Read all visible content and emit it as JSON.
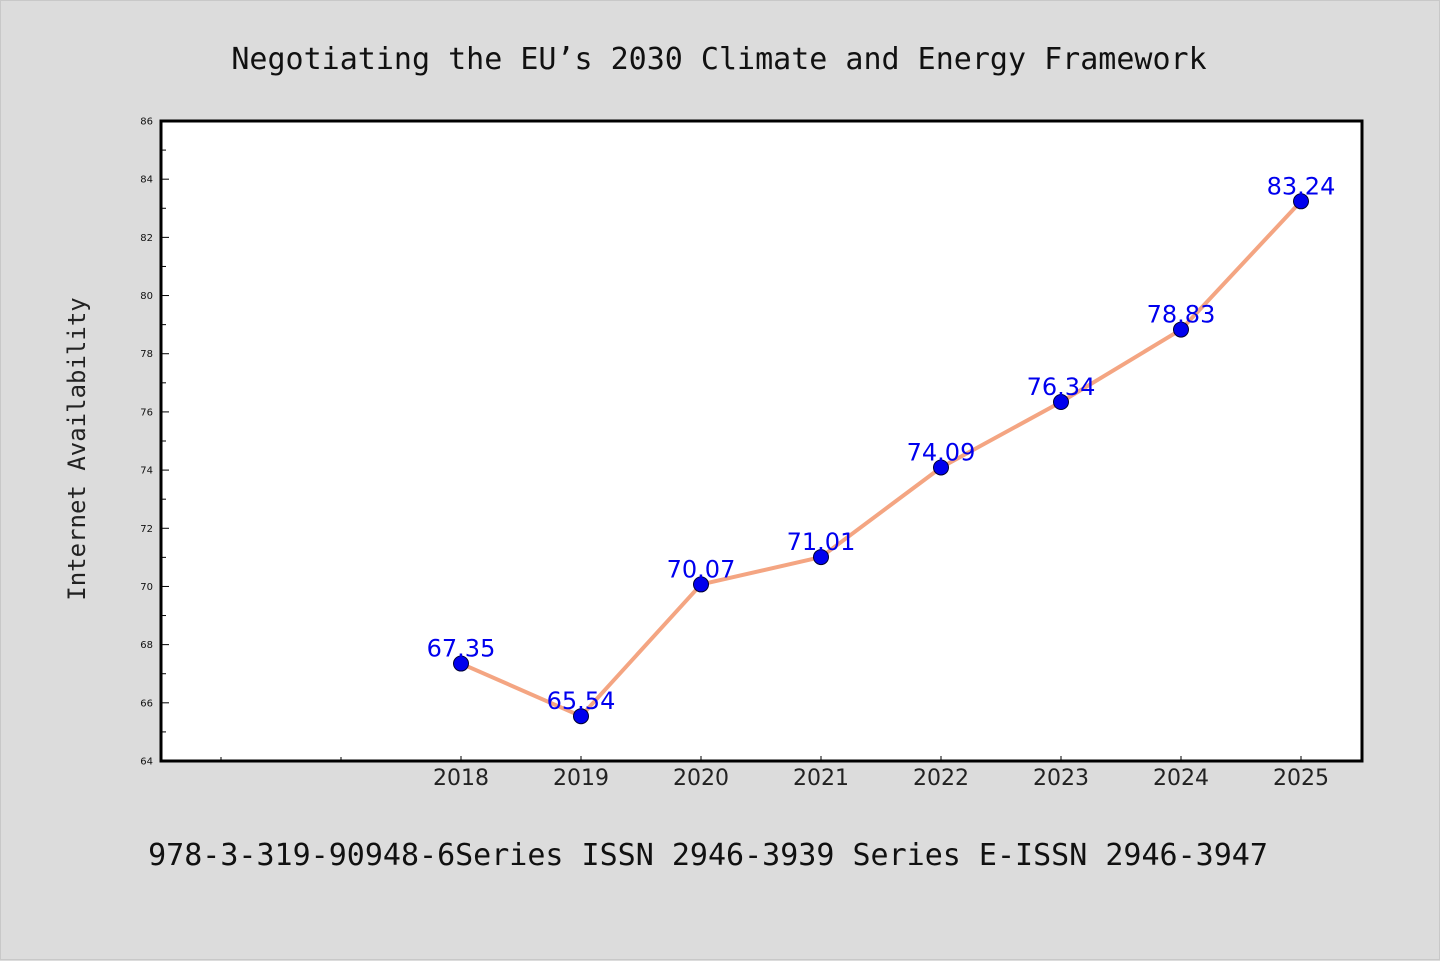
{
  "chart_data": {
    "type": "line",
    "title": "Negotiating the EU’s 2030 Climate and Energy Framework",
    "ylabel": "Internet Availability",
    "xlabel": "",
    "categories": [
      "2018",
      "2019",
      "2020",
      "2021",
      "2022",
      "2023",
      "2024",
      "2025"
    ],
    "series": [
      {
        "values": [
          67.35,
          65.54,
          70.07,
          71.01,
          74.09,
          76.34,
          78.83,
          83.24
        ],
        "labels": [
          "67.35",
          "65.54",
          "70.07",
          "71.01",
          "74.09",
          "76.34",
          "78.83",
          "83.24"
        ]
      }
    ],
    "ylim": [
      64,
      86
    ],
    "yticks": [
      "64",
      "66",
      "68",
      "70",
      "72",
      "74",
      "76",
      "78",
      "80",
      "82",
      "84",
      "86"
    ],
    "grid": false,
    "colors": {
      "line": "#f4a582",
      "marker": "#0000ee",
      "data_label": "#0000ee",
      "background": "#dcdcdc",
      "plot_background": "#ffffff"
    }
  },
  "footer": "978-3-319-90948-6Series ISSN 2946-3939 Series E-ISSN 2946-3947"
}
